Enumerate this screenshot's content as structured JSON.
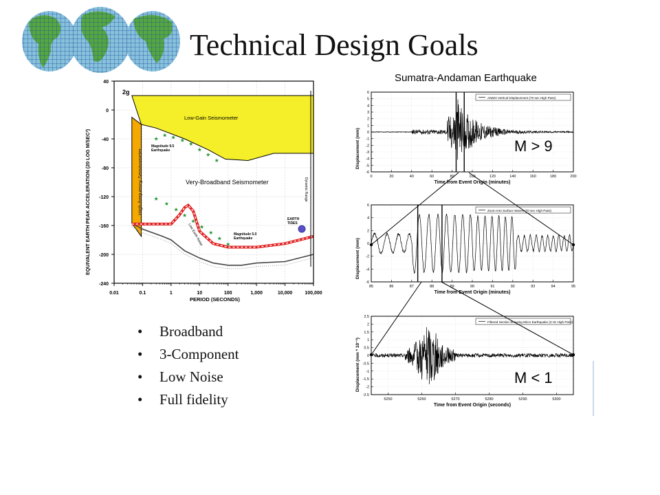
{
  "slide": {
    "title": "Technical Design Goals",
    "logo_icon": "globe-map-logo",
    "bullets": [
      "Broadband",
      "3-Component",
      "Low Noise",
      "Full fidelity"
    ]
  },
  "chart_data": [
    {
      "type": "line",
      "ylabel": "EQUIVALENT EARTH PEAK ACCELERATION (20 LOG M/SEC²)",
      "xlabel": "PERIOD (SECONDS)",
      "xscale": "log",
      "xlim": [
        0.01,
        100000
      ],
      "ylim": [
        -240,
        40
      ],
      "x_ticks": [
        "0.01",
        "0.1",
        "1",
        "10",
        "100",
        "1,000",
        "10,000",
        "100,000"
      ],
      "x_tick_values": [
        0.01,
        0.1,
        1,
        10,
        100,
        1000,
        10000,
        100000
      ],
      "y_ticks": [
        40,
        0,
        -40,
        -80,
        -120,
        -160,
        -200,
        -240
      ],
      "annotations": {
        "g2": "2g",
        "low_gain": "Low-Gain Seismometer",
        "very_broadband": "Very-Broadband Seismometer",
        "high_freq": "High-frequency Seismometer",
        "mag95_a": "Magnitude 9.5",
        "mag95_b": "Earthquake",
        "mag50_a": "Magnitude 5.0",
        "mag50_b": "Earthquake",
        "low_noise": "Low Earth Noise",
        "earth_a": "EARTH",
        "earth_b": "TIDES",
        "dyn_range": "Dynamic Range"
      },
      "regions": [
        {
          "name": "Low-Gain Seismometer",
          "color": "#f5ef2a",
          "points": [
            [
              0.042,
              20
            ],
            [
              100000,
              20
            ],
            [
              100000,
              -60
            ],
            [
              4000,
              -60
            ],
            [
              500,
              -70
            ],
            [
              80,
              -68
            ],
            [
              20,
              -55
            ],
            [
              3,
              -40
            ],
            [
              0.3,
              -25
            ],
            [
              0.09,
              -20
            ]
          ]
        },
        {
          "name": "High-frequency Seismometer",
          "color": "#f5a800",
          "points": [
            [
              0.042,
              -10
            ],
            [
              0.09,
              -20
            ],
            [
              0.09,
              -175
            ],
            [
              0.042,
              -157
            ]
          ]
        }
      ],
      "series": [
        {
          "name": "Low Earth Noise",
          "color": "#444444",
          "points": [
            [
              0.042,
              -157
            ],
            [
              0.1,
              -165
            ],
            [
              0.5,
              -175
            ],
            [
              1,
              -180
            ],
            [
              3,
              -195
            ],
            [
              10,
              -205
            ],
            [
              30,
              -212
            ],
            [
              100,
              -215
            ],
            [
              300,
              -215
            ],
            [
              1000,
              -212
            ],
            [
              10000,
              -210
            ],
            [
              100000,
              -200
            ]
          ]
        },
        {
          "name": "Magnitude 5.0 Earthquake",
          "color": "#e02020",
          "points": [
            [
              0.042,
              -158
            ],
            [
              0.2,
              -158
            ],
            [
              1,
              -158
            ],
            [
              2,
              -145
            ],
            [
              3,
              -135
            ],
            [
              4,
              -132
            ],
            [
              6,
              -140
            ],
            [
              10,
              -168
            ],
            [
              30,
              -185
            ],
            [
              100,
              -190
            ],
            [
              1000,
              -190
            ],
            [
              10000,
              -185
            ],
            [
              100000,
              -175
            ]
          ]
        }
      ],
      "stars": {
        "color": "#2a9a3a",
        "magnitude_9_5": [
          [
            0.3,
            -40
          ],
          [
            0.6,
            -35
          ],
          [
            1.2,
            -38
          ],
          [
            2.5,
            -42
          ],
          [
            5,
            -47
          ],
          [
            10,
            -55
          ],
          [
            20,
            -62
          ],
          [
            40,
            -70
          ]
        ],
        "magnitude_5_0": [
          [
            0.3,
            -123
          ],
          [
            0.7,
            -130
          ],
          [
            1.5,
            -138
          ],
          [
            3,
            -146
          ],
          [
            6,
            -154
          ],
          [
            12,
            -162
          ],
          [
            25,
            -170
          ],
          [
            50,
            -178
          ],
          [
            100,
            -186
          ]
        ]
      }
    },
    {
      "type": "line",
      "title": "Sumatra-Andaman Earthquake",
      "legend": "ANMO Vertical Displacement (70 sec High Pass)",
      "ylabel": "Displacement (mm)",
      "xlabel": "Time from Event Origin (minutes)",
      "xlim": [
        0,
        200
      ],
      "ylim": [
        -6,
        6
      ],
      "x_ticks": [
        0,
        20,
        40,
        60,
        80,
        100,
        120,
        140,
        160,
        180,
        200
      ],
      "y_ticks": [
        6,
        5,
        4,
        3,
        2,
        1,
        0,
        -1,
        -2,
        -3,
        -4,
        -5,
        -6
      ],
      "marker_lines": [
        84,
        92
      ],
      "magnitude_label": "M > 9"
    },
    {
      "type": "line",
      "legend": "Zoom Into Surface Waves (70 sec High Pass)",
      "ylabel": "Displacement (mm)",
      "xlabel": "Time from Event Origin (minutes)",
      "xlim": [
        85,
        95
      ],
      "ylim": [
        -6,
        6
      ],
      "x_ticks": [
        85,
        86,
        87,
        88,
        89,
        90,
        91,
        92,
        93,
        94,
        95
      ],
      "y_ticks": [
        6,
        4,
        2,
        0,
        -2,
        -4,
        -6
      ],
      "marker_lines": [
        87.3,
        88.5
      ]
    },
    {
      "type": "line",
      "legend": "Filtered Section Showing Micro Earthquake (3 Hz High Pass)",
      "ylabel": "Displacement (mm * 10⁻³)",
      "xlabel": "Time from Event Origin (seconds)",
      "xlim": [
        5245,
        5305
      ],
      "ylim": [
        -2.5,
        2.5
      ],
      "x_ticks": [
        5250,
        5260,
        5270,
        5280,
        5290,
        5300
      ],
      "y_ticks": [
        2.5,
        2,
        1.5,
        1,
        0.5,
        0,
        -0.5,
        -1,
        -1.5,
        -2,
        -2.5
      ],
      "magnitude_label": "M < 1"
    }
  ]
}
